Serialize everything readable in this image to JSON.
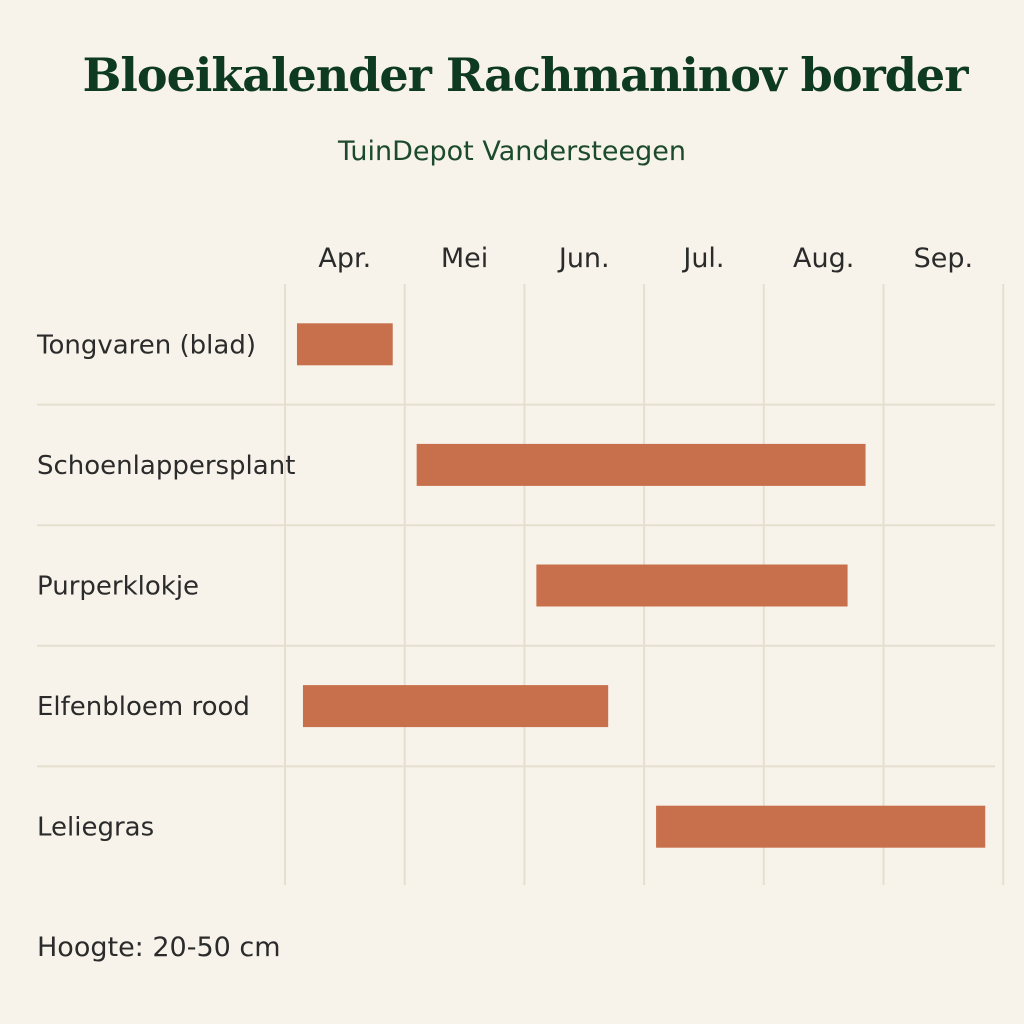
{
  "title": "Bloeikalender Rachmaninov border",
  "subtitle": "TuinDepot Vandersteegen",
  "footer": "Hoogte: 20-50 cm",
  "chart_data": {
    "type": "gantt",
    "x_unit": "month",
    "months": [
      "Apr.",
      "Mei",
      "Jun.",
      "Jul.",
      "Aug.",
      "Sep."
    ],
    "x_range": [
      4,
      10
    ],
    "grid": "vertical-and-horizontal",
    "bar_color": "#c8704c",
    "rows": [
      {
        "label": "Tongvaren (blad)",
        "start": 4.1,
        "end": 4.9
      },
      {
        "label": "Schoenlappersplant",
        "start": 5.1,
        "end": 8.85
      },
      {
        "label": "Purperklokje",
        "start": 6.1,
        "end": 8.7
      },
      {
        "label": "Elfenbloem rood",
        "start": 4.15,
        "end": 6.7
      },
      {
        "label": "Leliegras",
        "start": 7.1,
        "end": 9.85
      }
    ]
  }
}
